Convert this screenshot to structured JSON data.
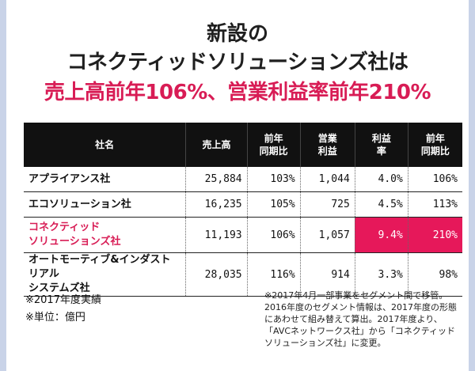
{
  "header": {
    "line1": "新設の",
    "line2": "コネクティッドソリューションズ社は",
    "line3": "売上高前年106%、営業利益率前年210%"
  },
  "table": {
    "columns": [
      "社名",
      "売上高",
      "前年\n同期比",
      "営業\n利益",
      "利益\n率",
      "前年\n同期比"
    ],
    "rows": [
      {
        "name": "アプライアンス社",
        "sales": "25,884",
        "sales_yoy": "103%",
        "op_profit": "1,044",
        "margin": "4.0%",
        "margin_yoy": "106%"
      },
      {
        "name": "エコソリューション社",
        "sales": "16,235",
        "sales_yoy": "105%",
        "op_profit": "725",
        "margin": "4.5%",
        "margin_yoy": "113%"
      },
      {
        "name": "コネクティッド\nソリューションズ社",
        "sales": "11,193",
        "sales_yoy": "106%",
        "op_profit": "1,057",
        "margin": "9.4%",
        "margin_yoy": "210%"
      },
      {
        "name": "オートモーティブ&インダストリアル\nシステムズ社",
        "sales": "28,035",
        "sales_yoy": "116%",
        "op_profit": "914",
        "margin": "3.3%",
        "margin_yoy": "98%"
      }
    ]
  },
  "notes": {
    "left1": "※2017年度実績",
    "left2": "※単位：億円",
    "right": "※2017年4月一部事業をセグメント間で移管。2016年度のセグメント情報は、2017年度の形態にあわせて組み替えて算出。2017年度より、「AVCネットワークス社」から「コネクティッドソリューションズ社」に変更。"
  },
  "colors": {
    "accent": "#d81c55",
    "highlight": "#e6185a",
    "header_bg": "#111111",
    "outer_bg": "#c9d3e8"
  }
}
